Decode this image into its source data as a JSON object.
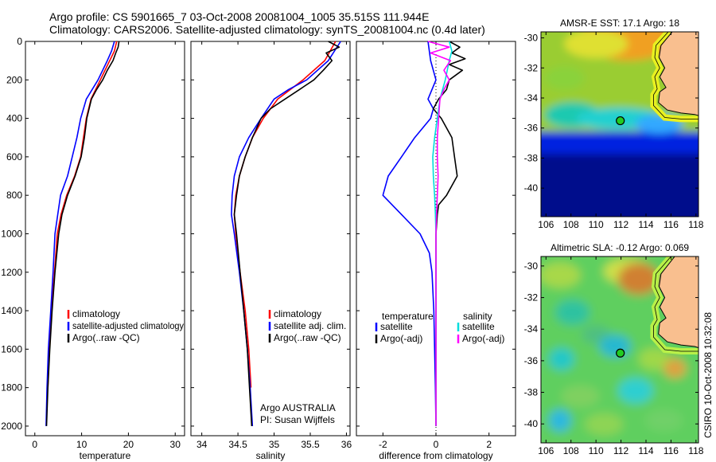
{
  "header": {
    "line1": "Argo profile: CS 5901665_7 03-Oct-2008 20081004_1005 35.515S 111.944E",
    "line2": "Climatology: CARS2006. Satellite-adjusted climatology: synTS_20081004.nc (0.4d later)"
  },
  "side_label": "CSIRO 10-Oct-2008 10:32:08",
  "colors": {
    "climatology": "#ff0000",
    "satellite": "#0000ff",
    "argo": "#000000",
    "sal_satellite": "#00dddd",
    "sal_argo": "#ff00ff",
    "land": "#f9bf8f",
    "coast": "#000000",
    "marker": "#22cc22"
  },
  "chart_data": [
    {
      "type": "line",
      "panel": "temperature",
      "xlabel": "temperature",
      "ylabel": "",
      "xlim": [
        -2,
        32
      ],
      "ylim": [
        2050,
        0
      ],
      "xticks": [
        "0",
        "10",
        "20",
        "30"
      ],
      "xtick_values": [
        0,
        10,
        20,
        30
      ],
      "yticks": [
        "0",
        "200",
        "400",
        "600",
        "800",
        "1000",
        "1200",
        "1400",
        "1600",
        "1800",
        "2000"
      ],
      "ytick_values": [
        0,
        200,
        400,
        600,
        800,
        1000,
        1200,
        1400,
        1600,
        1800,
        2000
      ],
      "legend": [
        "climatology",
        "satellite-adjusted climatology",
        "Argo(..raw -QC)"
      ],
      "legend_position": "lower-right",
      "series": [
        {
          "name": "climatology",
          "color": "#ff0000",
          "depth": [
            0,
            50,
            100,
            200,
            300,
            400,
            500,
            600,
            700,
            800,
            900,
            1000,
            1200,
            1400,
            1600,
            1800
          ],
          "values": [
            17.5,
            17.0,
            16.0,
            14.0,
            12.0,
            11.0,
            10.4,
            9.8,
            8.5,
            6.8,
            5.6,
            4.8,
            4.2,
            3.6,
            3.1,
            2.8
          ]
        },
        {
          "name": "satellite-adjusted climatology",
          "color": "#0000ff",
          "depth": [
            0,
            50,
            100,
            200,
            300,
            400,
            500,
            600,
            700,
            800,
            900,
            1000,
            1200,
            1400,
            1600,
            1800,
            2000
          ],
          "values": [
            17.0,
            16.4,
            15.5,
            13.5,
            11.0,
            9.8,
            9.0,
            8.0,
            7.0,
            5.5,
            4.9,
            4.3,
            3.9,
            3.4,
            2.9,
            2.6,
            2.4
          ]
        },
        {
          "name": "Argo(..raw -QC)",
          "color": "#000000",
          "depth": [
            0,
            30,
            60,
            100,
            150,
            200,
            250,
            300,
            400,
            500,
            600,
            700,
            800,
            900,
            1000,
            1200,
            1400,
            1600,
            1800,
            2000
          ],
          "values": [
            18.0,
            17.8,
            17.3,
            16.7,
            15.5,
            14.5,
            13.2,
            12.1,
            11.1,
            10.6,
            9.9,
            8.6,
            7.0,
            5.8,
            5.1,
            4.3,
            3.7,
            3.2,
            2.8,
            2.5
          ]
        }
      ]
    },
    {
      "type": "line",
      "panel": "salinity",
      "xlabel": "salinity",
      "ylabel": "",
      "xlim": [
        33.85,
        36.05
      ],
      "ylim": [
        2050,
        0
      ],
      "xticks": [
        "34",
        "34.5",
        "35",
        "35.5",
        "36"
      ],
      "xtick_values": [
        34,
        34.5,
        35,
        35.5,
        36
      ],
      "legend": [
        "climatology",
        "satellite adj. clim.",
        "Argo(..raw -QC)"
      ],
      "legend_position": "lower-right",
      "annotations": [
        "Argo AUSTRALIA",
        "PI: Susan Wijffels"
      ],
      "series": [
        {
          "name": "climatology",
          "color": "#ff0000",
          "depth": [
            0,
            100,
            200,
            300,
            400,
            500,
            600,
            700,
            800,
            900,
            1000,
            1200,
            1400,
            1600,
            1800
          ],
          "values": [
            35.85,
            35.7,
            35.4,
            35.05,
            34.85,
            34.7,
            34.6,
            34.52,
            34.47,
            34.45,
            34.47,
            34.53,
            34.6,
            34.65,
            34.68
          ]
        },
        {
          "name": "satellite adj. clim.",
          "color": "#0000ff",
          "depth": [
            0,
            100,
            200,
            250,
            300,
            400,
            500,
            600,
            700,
            800,
            900,
            1000,
            1200,
            1400,
            1600,
            1800,
            2000
          ],
          "values": [
            35.92,
            35.75,
            35.45,
            35.2,
            35.0,
            34.82,
            34.65,
            34.52,
            34.45,
            34.42,
            34.41,
            34.45,
            34.52,
            34.58,
            34.63,
            34.67,
            34.7
          ]
        },
        {
          "name": "Argo(..raw -QC)",
          "color": "#000000",
          "depth": [
            0,
            30,
            60,
            100,
            150,
            200,
            250,
            300,
            350,
            400,
            500,
            600,
            700,
            800,
            900,
            1000,
            1200,
            1400,
            1600,
            1800,
            2000
          ],
          "values": [
            35.75,
            35.9,
            35.72,
            35.8,
            35.68,
            35.55,
            35.35,
            35.15,
            34.95,
            34.82,
            34.7,
            34.6,
            34.52,
            34.48,
            34.45,
            34.48,
            34.53,
            34.58,
            34.63,
            34.66,
            34.69
          ]
        }
      ]
    },
    {
      "type": "line",
      "panel": "difference",
      "xlabel": "difference from climatology",
      "ylabel": "",
      "xlim": [
        -3.0,
        3.0
      ],
      "ylim": [
        2050,
        0
      ],
      "xticks": [
        "-2",
        "0",
        "2"
      ],
      "xtick_values": [
        -2,
        0,
        2
      ],
      "legend_titles": [
        "temperature",
        "salinity"
      ],
      "legend": [
        "satellite",
        "Argo(-adj)",
        "satellite",
        "Argo(-adj)"
      ],
      "legend_position": "lower-right",
      "series": [
        {
          "name": "temperature satellite",
          "color": "#0000ff",
          "depth": [
            0,
            100,
            200,
            300,
            350,
            400,
            500,
            600,
            700,
            800,
            900,
            1000,
            1100,
            1200,
            1400,
            1600,
            1800,
            2000
          ],
          "values": [
            -0.3,
            -0.2,
            0.0,
            -0.3,
            -0.1,
            -0.2,
            -0.8,
            -1.3,
            -1.8,
            -2.0,
            -1.3,
            -0.6,
            -0.25,
            -0.15,
            -0.08,
            -0.05,
            -0.02,
            0.0
          ]
        },
        {
          "name": "temperature Argo(-adj)",
          "color": "#000000",
          "depth": [
            0,
            30,
            60,
            90,
            120,
            150,
            200,
            250,
            300,
            350,
            400,
            500,
            600,
            700,
            800,
            850,
            900,
            1000,
            1200,
            1400,
            1600,
            1800,
            2000
          ],
          "values": [
            0.5,
            0.9,
            0.6,
            1.1,
            0.5,
            1.0,
            0.5,
            0.4,
            0.1,
            -0.1,
            0.2,
            0.6,
            0.7,
            0.8,
            0.4,
            0.1,
            0.05,
            0.0,
            0.0,
            0.0,
            0.0,
            0.0,
            0.0
          ]
        },
        {
          "name": "salinity satellite",
          "color": "#00dddd",
          "depth": [
            0,
            50,
            100,
            200,
            300,
            400,
            500,
            600,
            700,
            800,
            900,
            1000,
            1200,
            1400,
            1600,
            1800,
            2000
          ],
          "values": [
            0.5,
            0.6,
            0.5,
            0.35,
            0.15,
            0.05,
            -0.05,
            -0.12,
            -0.1,
            -0.05,
            -0.02,
            0.0,
            0.0,
            0.0,
            0.0,
            0.0,
            0.0
          ]
        },
        {
          "name": "salinity Argo(-adj)",
          "color": "#ff00ff",
          "depth": [
            0,
            30,
            60,
            100,
            150,
            200,
            250,
            300,
            400,
            500,
            600,
            700,
            800,
            900,
            1000,
            1200,
            1400,
            1600,
            1800,
            2000
          ],
          "values": [
            -0.3,
            0.5,
            -0.2,
            0.55,
            0.3,
            0.5,
            0.3,
            0.15,
            0.1,
            0.05,
            0.05,
            0.08,
            0.05,
            0.02,
            0.0,
            0.0,
            0.0,
            0.0,
            0.0,
            0.0
          ]
        }
      ]
    },
    {
      "type": "heatmap",
      "panel": "map-sst",
      "title": "AMSR-E SST: 17.1  Argo: 18",
      "xlim": [
        105.6,
        118.2
      ],
      "ylim": [
        -41.9,
        -29.6
      ],
      "xticks": [
        "106",
        "108",
        "110",
        "112",
        "114",
        "116",
        "118"
      ],
      "xtick_values": [
        106,
        108,
        110,
        112,
        114,
        116,
        118
      ],
      "yticks": [
        "-30",
        "-32",
        "-34",
        "-36",
        "-38",
        "-40"
      ],
      "ytick_values": [
        -30,
        -32,
        -34,
        -36,
        -38,
        -40
      ],
      "marker": {
        "lon": 111.944,
        "lat": -35.515
      }
    },
    {
      "type": "heatmap",
      "panel": "map-sla",
      "title": "Altimetric SLA: -0.12  Argo: 0.069",
      "xlim": [
        105.6,
        118.2
      ],
      "ylim": [
        -41.2,
        -29.4
      ],
      "xticks": [
        "106",
        "108",
        "110",
        "112",
        "114",
        "116",
        "118"
      ],
      "xtick_values": [
        106,
        108,
        110,
        112,
        114,
        116,
        118
      ],
      "yticks": [
        "-30",
        "-32",
        "-34",
        "-36",
        "-38",
        "-40"
      ],
      "ytick_values": [
        -30,
        -32,
        -34,
        -36,
        -38,
        -40
      ],
      "marker": {
        "lon": 111.944,
        "lat": -35.515
      }
    }
  ]
}
